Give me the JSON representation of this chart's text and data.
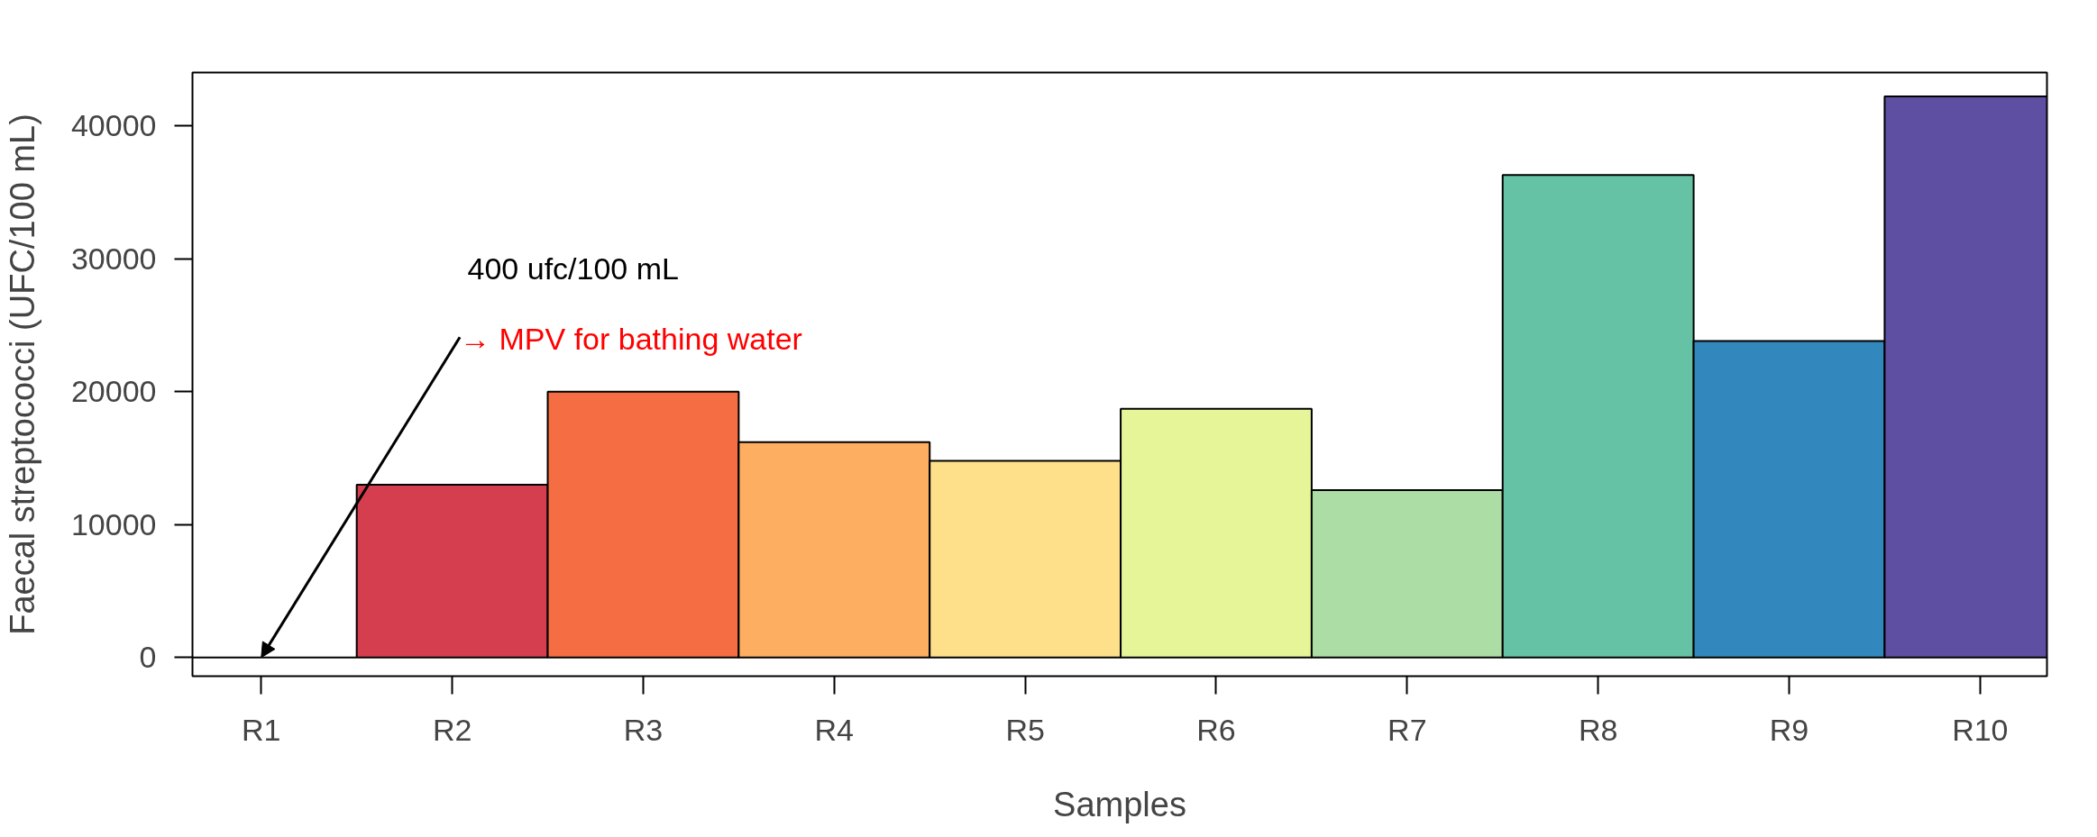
{
  "chart_data": {
    "type": "bar",
    "xlabel": "Samples",
    "ylabel": "Faecal streptococci (UFC/100 mL)",
    "categories": [
      "R1",
      "R2",
      "R3",
      "R4",
      "R5",
      "R6",
      "R7",
      "R8",
      "R9",
      "R10"
    ],
    "values": [
      0,
      13000,
      20000,
      16200,
      14800,
      18700,
      12600,
      36300,
      23800,
      42200
    ],
    "colors": [
      "#000000",
      "#d53e4f",
      "#f46d43",
      "#fdae61",
      "#fee08b",
      "#e6f598",
      "#abdda4",
      "#66c2a5",
      "#3288bd",
      "#5e4fa2"
    ],
    "ylim": [
      -1400,
      44000
    ],
    "yticks": [
      0,
      10000,
      20000,
      30000,
      40000
    ],
    "annotations": [
      "400 ufc/100 mL",
      {
        "text": "→ MPV for bathing water",
        "x": "R1",
        "y": 0
      }
    ],
    "grid": false,
    "legend": false
  }
}
